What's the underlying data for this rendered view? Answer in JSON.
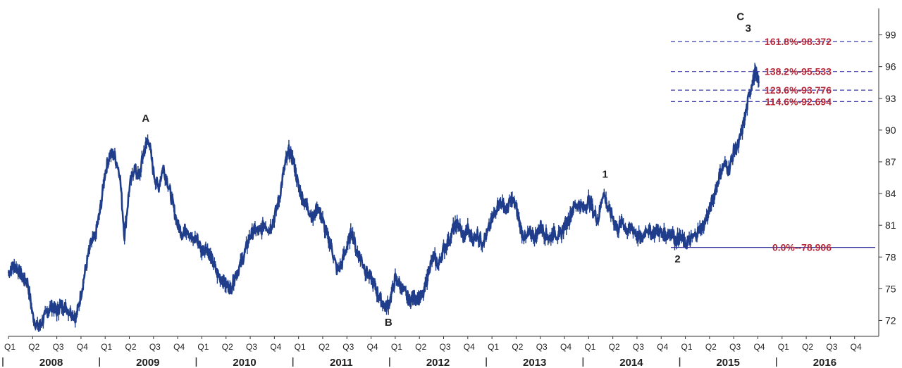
{
  "chart_data": {
    "type": "line",
    "title": "",
    "xlabel": "",
    "ylabel": "",
    "x_range": [
      2008.0,
      2017.0
    ],
    "ylim": [
      70.5,
      101.5
    ],
    "y_ticks": [
      72,
      75,
      78,
      81,
      84,
      87,
      90,
      93,
      96,
      99
    ],
    "y_tick_labels": [
      "72",
      "75",
      "78",
      "81",
      "84",
      "87",
      "90",
      "93",
      "96",
      "99"
    ],
    "quarter_labels": [
      "Q1",
      "Q2",
      "Q3",
      "Q4"
    ],
    "years": [
      {
        "label": "2008",
        "start": 2008
      },
      {
        "label": "2009",
        "start": 2009
      },
      {
        "label": "2010",
        "start": 2010
      },
      {
        "label": "2011",
        "start": 2011
      },
      {
        "label": "2012",
        "start": 2012
      },
      {
        "label": "2013",
        "start": 2013
      },
      {
        "label": "2014",
        "start": 2014
      },
      {
        "label": "2015",
        "start": 2015
      },
      {
        "label": "2016",
        "start": 2016
      }
    ],
    "series": [
      {
        "color": "#1f3d8a",
        "points": [
          [
            2008.0,
            76.5
          ],
          [
            2008.05,
            77.2
          ],
          [
            2008.1,
            76.8
          ],
          [
            2008.15,
            76.0
          ],
          [
            2008.2,
            75.6
          ],
          [
            2008.25,
            72.5
          ],
          [
            2008.3,
            71.3
          ],
          [
            2008.35,
            71.9
          ],
          [
            2008.4,
            72.8
          ],
          [
            2008.45,
            73.4
          ],
          [
            2008.5,
            72.9
          ],
          [
            2008.55,
            73.5
          ],
          [
            2008.6,
            73.2
          ],
          [
            2008.65,
            72.7
          ],
          [
            2008.7,
            72.3
          ],
          [
            2008.75,
            74.5
          ],
          [
            2008.8,
            77.0
          ],
          [
            2008.85,
            79.2
          ],
          [
            2008.9,
            80.0
          ],
          [
            2008.95,
            82.5
          ],
          [
            2009.0,
            86.0
          ],
          [
            2009.05,
            87.8
          ],
          [
            2009.1,
            87.5
          ],
          [
            2009.15,
            86.0
          ],
          [
            2009.2,
            80.0
          ],
          [
            2009.25,
            84.5
          ],
          [
            2009.3,
            86.5
          ],
          [
            2009.35,
            85.5
          ],
          [
            2009.4,
            88.0
          ],
          [
            2009.45,
            89.2
          ],
          [
            2009.5,
            86.0
          ],
          [
            2009.55,
            84.5
          ],
          [
            2009.6,
            86.5
          ],
          [
            2009.65,
            85.0
          ],
          [
            2009.7,
            83.0
          ],
          [
            2009.75,
            81.0
          ],
          [
            2009.8,
            80.3
          ],
          [
            2009.85,
            80.8
          ],
          [
            2009.9,
            79.5
          ],
          [
            2009.95,
            79.8
          ],
          [
            2010.0,
            78.6
          ],
          [
            2010.05,
            79.0
          ],
          [
            2010.1,
            77.8
          ],
          [
            2010.15,
            76.6
          ],
          [
            2010.2,
            76.0
          ],
          [
            2010.25,
            75.4
          ],
          [
            2010.3,
            75.0
          ],
          [
            2010.35,
            76.4
          ],
          [
            2010.4,
            77.2
          ],
          [
            2010.45,
            78.6
          ],
          [
            2010.5,
            80.0
          ],
          [
            2010.55,
            80.6
          ],
          [
            2010.6,
            80.3
          ],
          [
            2010.65,
            81.2
          ],
          [
            2010.7,
            80.6
          ],
          [
            2010.75,
            81.8
          ],
          [
            2010.8,
            83.5
          ],
          [
            2010.85,
            86.3
          ],
          [
            2010.9,
            88.0
          ],
          [
            2010.95,
            87.0
          ],
          [
            2011.0,
            84.6
          ],
          [
            2011.05,
            83.4
          ],
          [
            2011.1,
            82.6
          ],
          [
            2011.15,
            81.6
          ],
          [
            2011.2,
            82.8
          ],
          [
            2011.25,
            81.4
          ],
          [
            2011.3,
            80.0
          ],
          [
            2011.35,
            78.6
          ],
          [
            2011.4,
            76.6
          ],
          [
            2011.45,
            77.4
          ],
          [
            2011.5,
            79.0
          ],
          [
            2011.55,
            80.4
          ],
          [
            2011.6,
            78.6
          ],
          [
            2011.65,
            77.8
          ],
          [
            2011.7,
            76.6
          ],
          [
            2011.75,
            76.0
          ],
          [
            2011.8,
            75.0
          ],
          [
            2011.85,
            74.0
          ],
          [
            2011.9,
            73.2
          ],
          [
            2011.95,
            74.0
          ],
          [
            2012.0,
            76.0
          ],
          [
            2012.05,
            75.4
          ],
          [
            2012.1,
            74.6
          ],
          [
            2012.15,
            73.8
          ],
          [
            2012.2,
            74.4
          ],
          [
            2012.25,
            74.0
          ],
          [
            2012.3,
            74.6
          ],
          [
            2012.35,
            77.0
          ],
          [
            2012.4,
            78.0
          ],
          [
            2012.45,
            77.2
          ],
          [
            2012.5,
            78.8
          ],
          [
            2012.55,
            79.4
          ],
          [
            2012.6,
            80.6
          ],
          [
            2012.65,
            81.2
          ],
          [
            2012.7,
            79.8
          ],
          [
            2012.75,
            80.6
          ],
          [
            2012.8,
            79.6
          ],
          [
            2012.85,
            80.2
          ],
          [
            2012.9,
            79.4
          ],
          [
            2012.95,
            80.2
          ],
          [
            2013.0,
            81.4
          ],
          [
            2013.05,
            82.8
          ],
          [
            2013.1,
            83.2
          ],
          [
            2013.15,
            82.4
          ],
          [
            2013.2,
            83.4
          ],
          [
            2013.25,
            82.8
          ],
          [
            2013.3,
            80.6
          ],
          [
            2013.35,
            79.6
          ],
          [
            2013.4,
            80.4
          ],
          [
            2013.45,
            79.8
          ],
          [
            2013.5,
            81.0
          ],
          [
            2013.55,
            80.2
          ],
          [
            2013.6,
            79.8
          ],
          [
            2013.65,
            80.4
          ],
          [
            2013.7,
            79.8
          ],
          [
            2013.75,
            81.0
          ],
          [
            2013.8,
            81.6
          ],
          [
            2013.85,
            82.8
          ],
          [
            2013.9,
            83.0
          ],
          [
            2013.95,
            82.6
          ],
          [
            2014.0,
            83.4
          ],
          [
            2014.05,
            82.2
          ],
          [
            2014.1,
            81.6
          ],
          [
            2014.15,
            84.2
          ],
          [
            2014.2,
            82.6
          ],
          [
            2014.25,
            81.8
          ],
          [
            2014.3,
            80.6
          ],
          [
            2014.35,
            81.4
          ],
          [
            2014.4,
            80.4
          ],
          [
            2014.45,
            80.8
          ],
          [
            2014.5,
            80.0
          ],
          [
            2014.55,
            79.6
          ],
          [
            2014.6,
            80.8
          ],
          [
            2014.65,
            80.2
          ],
          [
            2014.7,
            80.6
          ],
          [
            2014.75,
            80.3
          ],
          [
            2014.8,
            80.0
          ],
          [
            2014.85,
            80.4
          ],
          [
            2014.9,
            79.6
          ],
          [
            2014.95,
            79.8
          ],
          [
            2015.0,
            79.2
          ],
          [
            2015.05,
            79.6
          ],
          [
            2015.1,
            80.0
          ],
          [
            2015.15,
            80.6
          ],
          [
            2015.2,
            81.2
          ],
          [
            2015.25,
            82.4
          ],
          [
            2015.3,
            84.0
          ],
          [
            2015.35,
            85.6
          ],
          [
            2015.4,
            86.8
          ],
          [
            2015.45,
            86.2
          ],
          [
            2015.5,
            88.0
          ],
          [
            2015.55,
            88.6
          ],
          [
            2015.6,
            90.5
          ],
          [
            2015.65,
            92.8
          ],
          [
            2015.7,
            95.0
          ],
          [
            2015.73,
            95.4
          ],
          [
            2015.76,
            94.6
          ]
        ]
      }
    ],
    "fib_levels": [
      {
        "value": 98.372,
        "label": "161.8%-98.372",
        "start": 2014.85
      },
      {
        "value": 95.533,
        "label": "138.2%-95.533",
        "start": 2014.85
      },
      {
        "value": 93.776,
        "label": "123.6%-93.776",
        "start": 2014.85
      },
      {
        "value": 92.694,
        "label": "114.6%-92.694",
        "start": 2014.85
      }
    ],
    "base_level": {
      "value": 78.906,
      "label": "0.0%--78.906",
      "start": 2014.85
    },
    "wave_labels": [
      {
        "text": "A",
        "x": 2009.42,
        "y": 90.8
      },
      {
        "text": "B",
        "x": 2011.93,
        "y": 71.5
      },
      {
        "text": "1",
        "x": 2014.17,
        "y": 85.5
      },
      {
        "text": "2",
        "x": 2014.92,
        "y": 77.5
      },
      {
        "text": "C",
        "x": 2015.57,
        "y": 100.4
      },
      {
        "text": "3",
        "x": 2015.65,
        "y": 99.3
      }
    ],
    "colors": {
      "series": "#1f3d8a",
      "fib_line": "#3a3aa8",
      "fib_text": "#b5283a",
      "base_line": "#3535a0"
    }
  }
}
